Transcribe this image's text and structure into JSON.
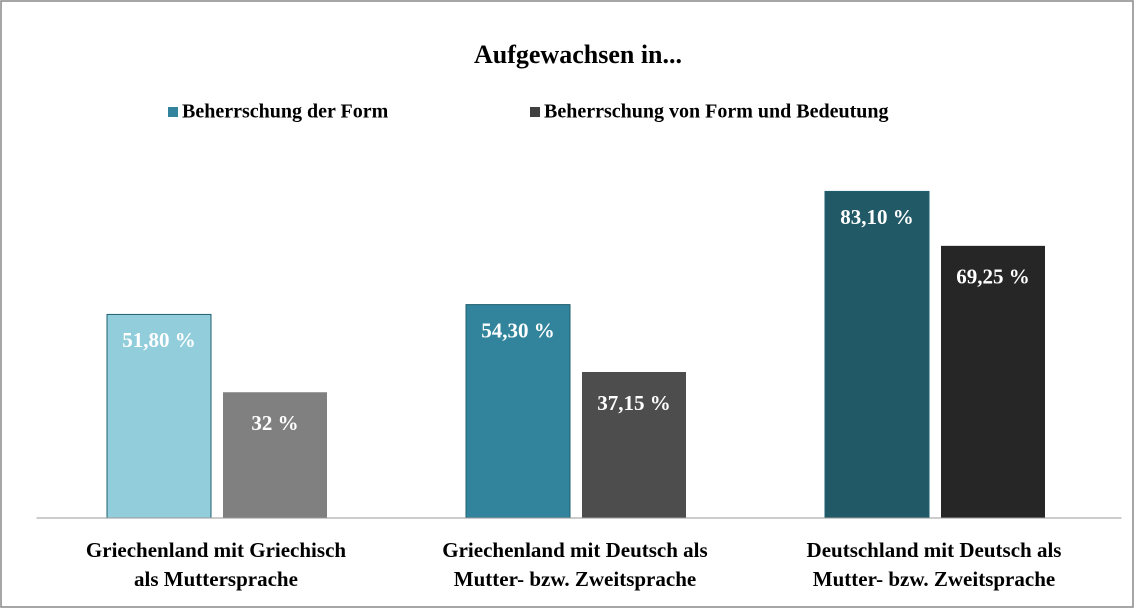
{
  "chart_data": {
    "type": "bar",
    "title": "Aufgewachsen in...",
    "categories": [
      [
        "Griechenland mit Griechisch",
        "als Muttersprache"
      ],
      [
        "Griechenland mit Deutsch als",
        "Mutter- bzw. Zweitsprache"
      ],
      [
        "Deutschland mit Deutsch als",
        "Mutter- bzw. Zweitsprache"
      ]
    ],
    "series": [
      {
        "name": "Beherrschung der Form",
        "color": "#31849b",
        "colors": [
          "#92cddc",
          "#31849b",
          "#215967"
        ],
        "values": [
          51.8,
          54.3,
          83.1
        ],
        "value_labels": [
          "51,80 %",
          "54,30 %",
          "83,10 %"
        ]
      },
      {
        "name": "Beherrschung von Form und Bedeutung",
        "color": "#404040",
        "colors": [
          "#808080",
          "#4d4d4d",
          "#262626"
        ],
        "values": [
          32,
          37.15,
          69.25
        ],
        "value_labels": [
          "32 %",
          "37,15 %",
          "69,25 %"
        ]
      }
    ],
    "ylim": [
      0,
      100
    ],
    "legend": "top"
  }
}
